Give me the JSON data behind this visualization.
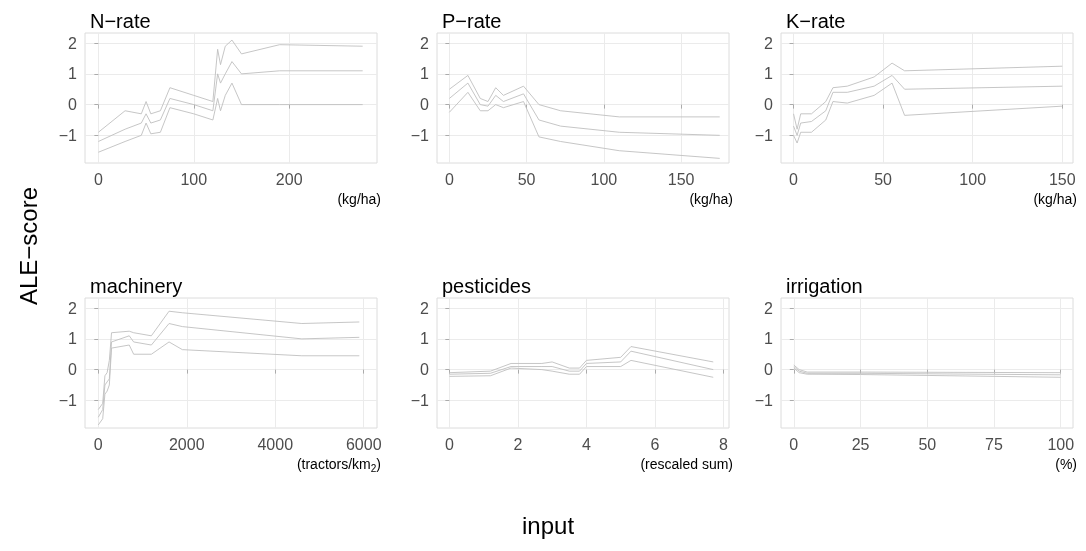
{
  "chart_data": [
    {
      "type": "line",
      "title": "N−rate",
      "xlabel": "(kg/ha)",
      "ylabel": "ALE−score",
      "annotations": [
        "input"
      ],
      "grid": true,
      "xlim": [
        -14,
        292
      ],
      "xticks": [
        0,
        100,
        200
      ],
      "ylim": [
        -1.9,
        2.33
      ],
      "yticks": [
        -1,
        0,
        1,
        2
      ],
      "x": [
        0,
        28,
        45,
        50,
        55,
        65,
        75,
        100,
        120,
        125,
        128,
        133,
        140,
        150,
        190,
        277
      ],
      "series": [
        {
          "color": "#c0c0c0",
          "values": [
            -0.9,
            -0.2,
            -0.3,
            0.1,
            -0.3,
            -0.2,
            0.55,
            0.3,
            0.1,
            1.8,
            1.3,
            1.9,
            2.1,
            1.65,
            1.95,
            1.9
          ]
        },
        {
          "color": "#c0c0c0",
          "values": [
            -1.2,
            -0.8,
            -0.6,
            -0.3,
            -0.6,
            -0.5,
            0.2,
            0,
            -0.2,
            1,
            0.7,
            1,
            1.4,
            1,
            1.1,
            1.1
          ]
        },
        {
          "color": "#c0c0c0",
          "values": [
            -1.55,
            -1.2,
            -1,
            -0.6,
            -0.95,
            -0.9,
            -0.1,
            -0.3,
            -0.5,
            0.2,
            -0.2,
            0.3,
            0.7,
            0,
            0,
            0
          ]
        }
      ]
    },
    {
      "type": "line",
      "title": "P−rate",
      "xlabel": "(kg/ha)",
      "grid": true,
      "xlim": [
        -8,
        181
      ],
      "xticks": [
        0,
        50,
        100,
        150
      ],
      "ylim": [
        -1.9,
        2.33
      ],
      "yticks": [
        -1,
        0,
        1,
        2
      ],
      "x": [
        0,
        12,
        20,
        25,
        30,
        35,
        48,
        58,
        72,
        110,
        175
      ],
      "series": [
        {
          "color": "#c0c0c0",
          "values": [
            0.5,
            0.95,
            0.2,
            0.1,
            0.55,
            0.3,
            0.6,
            0,
            -0.2,
            -0.4,
            -0.4
          ]
        },
        {
          "color": "#c0c0c0",
          "values": [
            0.2,
            0.7,
            0,
            -0.05,
            0.3,
            0.1,
            0.35,
            -0.5,
            -0.7,
            -0.9,
            -1
          ]
        },
        {
          "color": "#c0c0c0",
          "values": [
            -0.25,
            0.4,
            -0.2,
            -0.2,
            0,
            -0.1,
            0.1,
            -1.05,
            -1.2,
            -1.5,
            -1.75
          ]
        }
      ]
    },
    {
      "type": "line",
      "title": "K−rate",
      "xlabel": "(kg/ha)",
      "grid": true,
      "xlim": [
        -7,
        156
      ],
      "xticks": [
        0,
        50,
        100,
        150
      ],
      "ylim": [
        -1.9,
        2.33
      ],
      "yticks": [
        -1,
        0,
        1,
        2
      ],
      "x": [
        0,
        2,
        4,
        10,
        18,
        22,
        30,
        45,
        55,
        62,
        150
      ],
      "series": [
        {
          "color": "#c0c0c0",
          "values": [
            -0.3,
            -0.8,
            -0.3,
            -0.3,
            0.1,
            0.55,
            0.6,
            0.9,
            1.35,
            1.1,
            1.25
          ]
        },
        {
          "color": "#c0c0c0",
          "values": [
            -0.7,
            -1,
            -0.6,
            -0.55,
            -0.2,
            0.4,
            0.4,
            0.6,
            0.95,
            0.5,
            0.6
          ]
        },
        {
          "color": "#c0c0c0",
          "values": [
            -1,
            -1.25,
            -0.9,
            -0.9,
            -0.5,
            0.1,
            0.05,
            0.3,
            0.7,
            -0.35,
            -0.05
          ]
        }
      ]
    },
    {
      "type": "line",
      "title": "machinery",
      "xlabel": "(tractors/km$_{2}$)",
      "grid": true,
      "xlim": [
        -300,
        6300
      ],
      "xticks": [
        0,
        2000,
        4000,
        6000
      ],
      "ylim": [
        -1.9,
        2.33
      ],
      "yticks": [
        -1,
        0,
        1,
        2
      ],
      "x": [
        0,
        100,
        150,
        200,
        250,
        300,
        700,
        800,
        1200,
        1600,
        1900,
        4600,
        5900
      ],
      "series": [
        {
          "color": "#c0c0c0",
          "values": [
            -1.3,
            -1.1,
            -0.2,
            -0.1,
            0.3,
            1.2,
            1.25,
            1.2,
            1.1,
            1.9,
            1.85,
            1.5,
            1.55
          ]
        },
        {
          "color": "#c0c0c0",
          "values": [
            -1.55,
            -1.3,
            -0.5,
            -0.4,
            -0.3,
            0.9,
            1.1,
            0.9,
            0.8,
            1.5,
            1.4,
            1,
            1.05
          ]
        },
        {
          "color": "#c0c0c0",
          "values": [
            -1.8,
            -1.6,
            -0.8,
            -0.7,
            -0.5,
            0.7,
            0.8,
            0.5,
            0.5,
            0.9,
            0.65,
            0.45,
            0.45
          ]
        }
      ]
    },
    {
      "type": "line",
      "title": "pesticides",
      "xlabel": "(rescaled sum)",
      "grid": true,
      "xlim": [
        -0.36,
        8.16
      ],
      "xticks": [
        0,
        2,
        4,
        6,
        8
      ],
      "ylim": [
        -1.9,
        2.33
      ],
      "yticks": [
        -1,
        0,
        1,
        2
      ],
      "x": [
        0,
        1.2,
        1.8,
        2.7,
        3,
        3.5,
        3.8,
        4,
        5,
        5.3,
        7.7
      ],
      "series": [
        {
          "color": "#c0c0c0",
          "values": [
            -0.1,
            -0.05,
            0.2,
            0.2,
            0.25,
            0.05,
            0.05,
            0.3,
            0.4,
            0.75,
            0.25
          ]
        },
        {
          "color": "#c0c0c0",
          "values": [
            -0.15,
            -0.12,
            0.1,
            0.1,
            0.1,
            -0.05,
            -0.05,
            0.2,
            0.25,
            0.6,
            0
          ]
        },
        {
          "color": "#c0c0c0",
          "values": [
            -0.22,
            -0.2,
            0.05,
            0,
            -0.05,
            -0.15,
            -0.15,
            0.1,
            0.1,
            0.3,
            -0.25
          ]
        }
      ]
    },
    {
      "type": "line",
      "title": "irrigation",
      "xlabel": "(%)",
      "grid": true,
      "xlim": [
        -4.8,
        104.6
      ],
      "xticks": [
        0,
        25,
        50,
        75,
        100
      ],
      "ylim": [
        -1.9,
        2.33
      ],
      "yticks": [
        -1,
        0,
        1,
        2
      ],
      "x": [
        0,
        2,
        5,
        25,
        100
      ],
      "series": [
        {
          "color": "#c0c0c0",
          "values": [
            0.15,
            0,
            -0.08,
            -0.08,
            -0.1
          ]
        },
        {
          "color": "#c0c0c0",
          "values": [
            0.1,
            -0.05,
            -0.12,
            -0.12,
            -0.17
          ]
        },
        {
          "color": "#c0c0c0",
          "values": [
            0.05,
            -0.1,
            -0.15,
            -0.16,
            -0.25
          ]
        }
      ]
    }
  ]
}
